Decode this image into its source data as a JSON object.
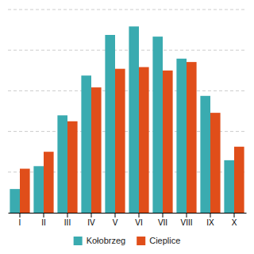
{
  "chart_data": {
    "type": "bar",
    "categories": [
      "I",
      "II",
      "III",
      "IV",
      "V",
      "VI",
      "VII",
      "VIII",
      "IX",
      "X"
    ],
    "series": [
      {
        "name": "Kołobrzeg",
        "color": "#3AABB0",
        "values": [
          28,
          55,
          115,
          162,
          210,
          220,
          208,
          182,
          138,
          62
        ]
      },
      {
        "name": "Cieplice",
        "color": "#E04E1A",
        "values": [
          52,
          72,
          108,
          148,
          170,
          172,
          168,
          178,
          118,
          78
        ]
      }
    ],
    "ylim": [
      0,
      240
    ],
    "yticks": [
      48,
      96,
      144,
      192,
      240
    ],
    "grid": true,
    "tick_labels": "x",
    "legend": "bottom"
  }
}
